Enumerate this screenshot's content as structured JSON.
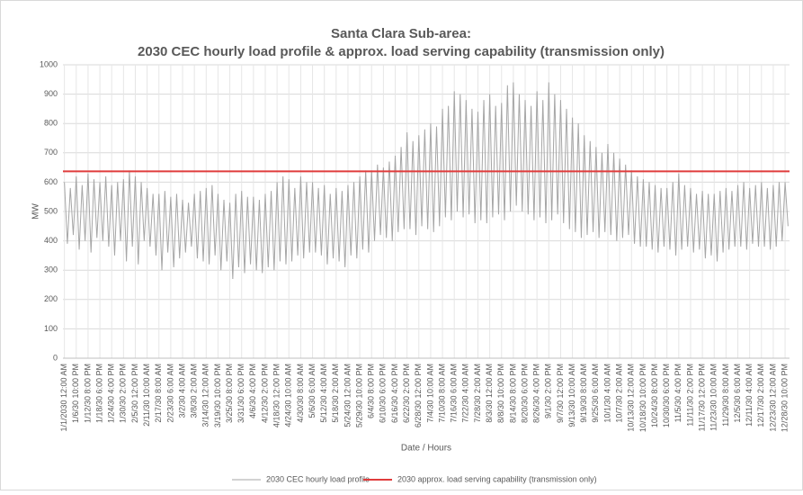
{
  "chart_data": {
    "type": "line",
    "title": "Santa Clara Sub-area:",
    "subtitle": "2030 CEC hourly load profile & approx. load serving capability (transmission only)",
    "x_label": "Date / Hours",
    "y_label": "MW",
    "ylim": [
      0,
      1000
    ],
    "yticks": [
      0,
      100,
      200,
      300,
      400,
      500,
      600,
      700,
      800,
      900,
      1000
    ],
    "grid": true,
    "legend": "bottom",
    "categories": [
      "1/1/2030 12:00 AM",
      null,
      null,
      null,
      "1/6/30 10:00 PM",
      null,
      null,
      null,
      "1/12/30 8:00 PM",
      null,
      null,
      null,
      "1/18/30 6:00 PM",
      null,
      null,
      null,
      "1/24/30 4:00 PM",
      null,
      null,
      null,
      "1/30/30 2:00 PM",
      null,
      null,
      null,
      "2/5/30 12:00 PM",
      null,
      null,
      null,
      "2/11/30 10:00 AM",
      null,
      null,
      null,
      "2/17/30 8:00 AM",
      null,
      null,
      null,
      "2/23/30 6:00 AM",
      null,
      null,
      null,
      "3/2/30 4:00 AM",
      null,
      null,
      null,
      "3/8/30 2:00 AM",
      null,
      null,
      null,
      "3/14/30 12:00 AM",
      null,
      null,
      null,
      "3/19/30 10:00 PM",
      null,
      null,
      null,
      "3/25/30 8:00 PM",
      null,
      null,
      null,
      "3/31/30 6:00 PM",
      null,
      null,
      null,
      "4/6/30 4:00 PM",
      null,
      null,
      null,
      "4/12/30 2:00 PM",
      null,
      null,
      null,
      "4/18/30 12:00 PM",
      null,
      null,
      null,
      "4/24/30 10:00 AM",
      null,
      null,
      null,
      "4/30/30 8:00 AM",
      null,
      null,
      null,
      "5/6/30 6:00 AM",
      null,
      null,
      null,
      "5/12/30 4:00 AM",
      null,
      null,
      null,
      "5/18/30 2:00 AM",
      null,
      null,
      null,
      "5/24/30 12:00 AM",
      null,
      null,
      null,
      "5/29/30 10:00 PM",
      null,
      null,
      null,
      "6/4/30 8:00 PM",
      null,
      null,
      null,
      "6/10/30 6:00 PM",
      null,
      null,
      null,
      "6/16/30 4:00 PM",
      null,
      null,
      null,
      "6/22/30 2:00 PM",
      null,
      null,
      null,
      "6/28/30 12:00 PM",
      null,
      null,
      null,
      "7/4/30 10:00 AM",
      null,
      null,
      null,
      "7/10/30 8:00 AM",
      null,
      null,
      null,
      "7/16/30 6:00 AM",
      null,
      null,
      null,
      "7/22/30 4:00 AM",
      null,
      null,
      null,
      "7/28/30 2:00 AM",
      null,
      null,
      null,
      "8/3/30 12:00 AM",
      null,
      null,
      null,
      "8/8/30 10:00 PM",
      null,
      null,
      null,
      "8/14/30 8:00 PM",
      null,
      null,
      null,
      "8/20/30 6:00 PM",
      null,
      null,
      null,
      "8/26/30 4:00 PM",
      null,
      null,
      null,
      "9/1/30 2:00 PM",
      null,
      null,
      null,
      "9/7/30 12:00 PM",
      null,
      null,
      null,
      "9/13/30 10:00 AM",
      null,
      null,
      null,
      "9/19/30 8:00 AM",
      null,
      null,
      null,
      "9/25/30 6:00 AM",
      null,
      null,
      null,
      "10/1/30 4:00 AM",
      null,
      null,
      null,
      "10/7/30 2:00 AM",
      null,
      null,
      null,
      "10/13/30 12:00 AM",
      null,
      null,
      null,
      "10/18/30 10:00 PM",
      null,
      null,
      null,
      "10/24/30 8:00 PM",
      null,
      null,
      null,
      "10/30/30 6:00 PM",
      null,
      null,
      null,
      "11/5/30 4:00 PM",
      null,
      null,
      null,
      "11/11/30 2:00 PM",
      null,
      null,
      null,
      "11/17/30 12:00 PM",
      null,
      null,
      null,
      "11/23/30 10:00 AM",
      null,
      null,
      null,
      "11/29/30 8:00 AM",
      null,
      null,
      null,
      "12/5/30 6:00 AM",
      null,
      null,
      null,
      "12/11/30 4:00 AM",
      null,
      null,
      null,
      "12/17/30 2:00 AM",
      null,
      null,
      null,
      "12/23/30 12:00 AM",
      null,
      null,
      null,
      "12/28/30 10:00 PM",
      null
    ],
    "series": [
      {
        "name": "2030 CEC hourly load profile",
        "color": "#a6a6a6",
        "values": [
          600,
          390,
          580,
          420,
          620,
          370,
          590,
          400,
          630,
          360,
          610,
          410,
          600,
          400,
          620,
          380,
          590,
          350,
          600,
          400,
          610,
          330,
          640,
          380,
          620,
          320,
          600,
          400,
          580,
          380,
          560,
          350,
          560,
          300,
          570,
          360,
          550,
          310,
          560,
          340,
          540,
          360,
          530,
          380,
          560,
          340,
          570,
          330,
          580,
          320,
          590,
          350,
          560,
          300,
          540,
          330,
          530,
          270,
          560,
          310,
          570,
          290,
          550,
          320,
          550,
          300,
          540,
          290,
          560,
          310,
          570,
          300,
          600,
          330,
          620,
          320,
          610,
          330,
          580,
          350,
          620,
          340,
          600,
          360,
          600,
          360,
          580,
          350,
          590,
          320,
          560,
          340,
          580,
          330,
          570,
          310,
          590,
          350,
          600,
          340,
          620,
          370,
          640,
          360,
          640,
          400,
          660,
          420,
          650,
          410,
          670,
          400,
          690,
          430,
          720,
          440,
          770,
          440,
          740,
          420,
          760,
          450,
          780,
          440,
          800,
          430,
          790,
          450,
          850,
          480,
          860,
          470,
          910,
          500,
          900,
          480,
          880,
          490,
          850,
          460,
          840,
          470,
          880,
          460,
          900,
          480,
          860,
          490,
          870,
          470,
          930,
          500,
          940,
          520,
          900,
          500,
          880,
          490,
          860,
          470,
          910,
          480,
          880,
          460,
          940,
          470,
          900,
          490,
          880,
          460,
          850,
          440,
          820,
          430,
          800,
          410,
          760,
          420,
          740,
          430,
          720,
          410,
          700,
          430,
          730,
          420,
          700,
          400,
          680,
          410,
          660,
          420,
          640,
          390,
          620,
          380,
          610,
          380,
          600,
          370,
          590,
          360,
          580,
          380,
          580,
          370,
          600,
          350,
          630,
          370,
          590,
          380,
          580,
          360,
          560,
          370,
          570,
          340,
          560,
          350,
          560,
          330,
          570,
          360,
          580,
          370,
          570,
          380,
          590,
          380,
          600,
          370,
          580,
          390,
          590,
          380,
          600,
          380,
          580,
          370,
          590,
          380,
          600,
          400,
          600,
          450
        ]
      }
    ],
    "reference_line": {
      "name": "2030 approx. load serving capability (transmission only)",
      "color": "#e03c3c",
      "value": 637
    }
  }
}
